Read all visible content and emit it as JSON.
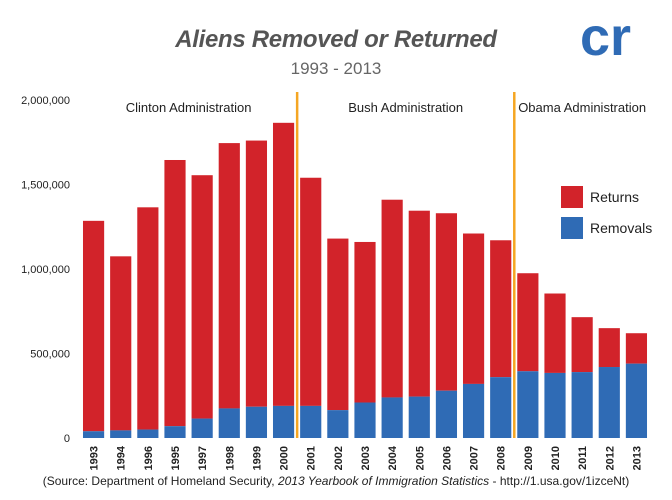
{
  "header": {
    "title": "Aliens Removed or Returned",
    "subtitle": "1993 - 2013",
    "logo_text": "cr"
  },
  "source": {
    "prefix": "(Source: Department of Homeland Security, ",
    "italic": "2013 Yearbook of Immigration Statistics",
    "suffix": " - http://1.usa.gov/1izceNt)"
  },
  "colors": {
    "returns": "#d2232a",
    "removals": "#2f6bb5",
    "divider": "#f5a623",
    "logo": "#2f6bb5"
  },
  "chart_data": {
    "type": "bar",
    "stacked": true,
    "title": "Aliens Removed or Returned",
    "subtitle": "1993 - 2013",
    "xlabel": "",
    "ylabel": "",
    "ylim": [
      0,
      2000000
    ],
    "yticks": [
      0,
      500000,
      1000000,
      1500000,
      2000000
    ],
    "ytick_labels": [
      "0",
      "500,000",
      "1,000,000",
      "1,500,000",
      "2,000,000"
    ],
    "grid": false,
    "legend": "right",
    "categories": [
      "1993",
      "1994",
      "1996",
      "1995",
      "1997",
      "1998",
      "1999",
      "2000",
      "2001",
      "2002",
      "2003",
      "2004",
      "2005",
      "2006",
      "2007",
      "2008",
      "2009",
      "2010",
      "2011",
      "2012",
      "2013"
    ],
    "series": [
      {
        "name": "Removals",
        "values": [
          40000,
          45000,
          50000,
          70000,
          115000,
          175000,
          185000,
          190000,
          190000,
          165000,
          210000,
          240000,
          245000,
          280000,
          320000,
          360000,
          395000,
          385000,
          390000,
          420000,
          440000
        ]
      },
      {
        "name": "Returns",
        "values": [
          1245000,
          1030000,
          1315000,
          1575000,
          1440000,
          1570000,
          1575000,
          1675000,
          1350000,
          1015000,
          950000,
          1170000,
          1100000,
          1050000,
          890000,
          810000,
          580000,
          470000,
          325000,
          230000,
          180000
        ]
      }
    ],
    "annotations": [
      {
        "text": "Clinton Administration",
        "after_category": null
      },
      {
        "text": "Bush Administration",
        "after_category": "2000"
      },
      {
        "text": "Obama Administration",
        "after_category": "2008"
      }
    ]
  }
}
